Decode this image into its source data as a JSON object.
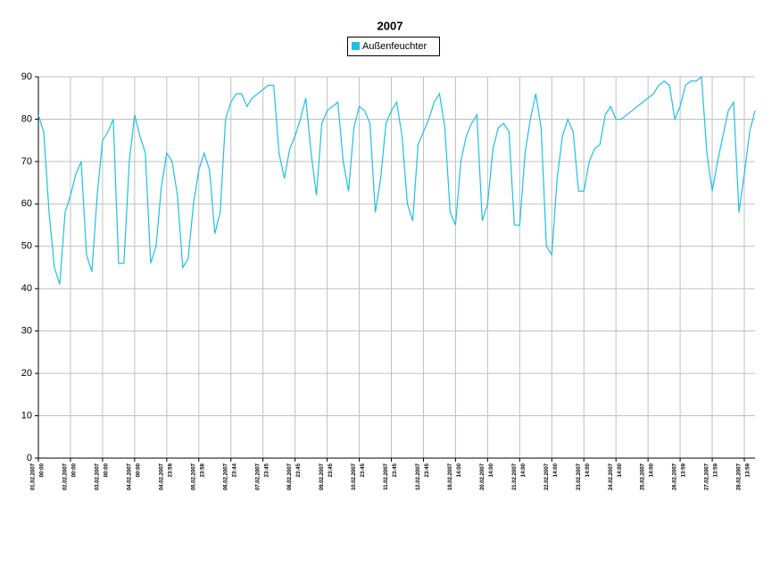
{
  "chart_data": {
    "type": "line",
    "title": "2007",
    "categories": [
      [
        "01.02.2007",
        "00:00"
      ],
      null,
      null,
      null,
      null,
      null,
      [
        "02.02.2007",
        "00:00"
      ],
      null,
      null,
      null,
      null,
      null,
      [
        "03.02.2007",
        "00:00"
      ],
      null,
      null,
      null,
      null,
      null,
      [
        "04.02.2007",
        "00:00"
      ],
      null,
      null,
      null,
      null,
      null,
      [
        "04.02.2007",
        "23:59"
      ],
      null,
      null,
      null,
      null,
      null,
      [
        "05.02.2007",
        "23:58"
      ],
      null,
      null,
      null,
      null,
      null,
      [
        "06.02.2007",
        "23:44"
      ],
      null,
      null,
      null,
      null,
      null,
      [
        "07.02.2007",
        "23:45"
      ],
      null,
      null,
      null,
      null,
      null,
      [
        "08.02.2007",
        "23:45"
      ],
      null,
      null,
      null,
      null,
      null,
      [
        "09.02.2007",
        "23:45"
      ],
      null,
      null,
      null,
      null,
      null,
      [
        "10.02.2007",
        "23:45"
      ],
      null,
      null,
      null,
      null,
      null,
      [
        "11.02.2007",
        "23:45"
      ],
      null,
      null,
      null,
      null,
      null,
      [
        "12.02.2007",
        "23:45"
      ],
      null,
      null,
      null,
      null,
      null,
      [
        "19.02.2007",
        "14:00"
      ],
      null,
      null,
      null,
      null,
      null,
      [
        "20.02.2007",
        "14:00"
      ],
      null,
      null,
      null,
      null,
      null,
      [
        "21.02.2007",
        "14:00"
      ],
      null,
      null,
      null,
      null,
      null,
      [
        "22.02.2007",
        "14:00"
      ],
      null,
      null,
      null,
      null,
      null,
      [
        "23.02.2007",
        "14:00"
      ],
      null,
      null,
      null,
      null,
      null,
      [
        "24.02.2007",
        "14:00"
      ],
      null,
      null,
      null,
      null,
      null,
      [
        "25.02.2007",
        "14:00"
      ],
      null,
      null,
      null,
      null,
      null,
      [
        "26.02.2007",
        "13:59"
      ],
      null,
      null,
      null,
      null,
      null,
      [
        "27.02.2007",
        "13:59"
      ],
      null,
      null,
      null,
      null,
      null,
      [
        "28.02.2007",
        "13:59"
      ],
      null,
      null
    ],
    "series": [
      {
        "name": "Außenfeuchter",
        "color": "#1ec0e6",
        "values": [
          81,
          77,
          58,
          45,
          41,
          58,
          62,
          67,
          70,
          48,
          44,
          62,
          75,
          77,
          80,
          46,
          46,
          70,
          81,
          76,
          72,
          46,
          50,
          64,
          72,
          70,
          62,
          45,
          47,
          60,
          68,
          72,
          68,
          53,
          58,
          80,
          84,
          86,
          86,
          83,
          85,
          86,
          87,
          88,
          88,
          72,
          66,
          73,
          76,
          80,
          85,
          72,
          62,
          79,
          82,
          83,
          84,
          70,
          63,
          78,
          83,
          82,
          79,
          58,
          66,
          79,
          82,
          84,
          76,
          60,
          56,
          74,
          77,
          80,
          84,
          86,
          78,
          58,
          55,
          70,
          76,
          79,
          81,
          56,
          60,
          73,
          78,
          79,
          77,
          55,
          55,
          72,
          80,
          86,
          78,
          50,
          48,
          66,
          76,
          80,
          77,
          63,
          63,
          70,
          73,
          74,
          81,
          83,
          80,
          80,
          81,
          82,
          83,
          84,
          85,
          86,
          88,
          89,
          88,
          80,
          83,
          88,
          89,
          89,
          90,
          72,
          63,
          70,
          76,
          82,
          84,
          58,
          67,
          77,
          82
        ]
      }
    ],
    "ylim": [
      0,
      90
    ],
    "yticks": [
      0,
      10,
      20,
      30,
      40,
      50,
      60,
      70,
      80,
      90
    ],
    "grid": true
  }
}
